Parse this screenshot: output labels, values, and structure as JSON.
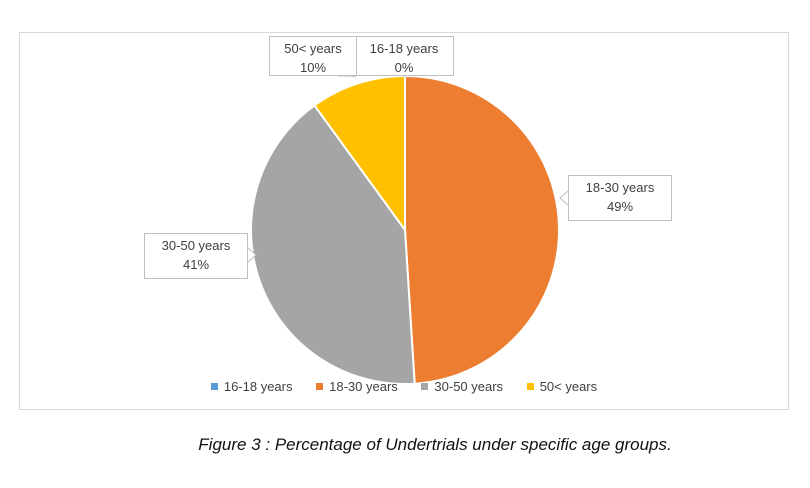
{
  "chart_data": {
    "type": "pie",
    "title": "",
    "categories": [
      "16-18 years",
      "18-30 years",
      "30-50 years",
      "50< years"
    ],
    "values": [
      0,
      49,
      41,
      10
    ],
    "value_labels": [
      "0%",
      "49%",
      "41%",
      "10%"
    ],
    "colors": [
      "#5b9bd5",
      "#ed7d31",
      "#a5a5a5",
      "#ffc000"
    ],
    "legend_position": "bottom",
    "legend": [
      "16-18 years",
      "18-30 years",
      "30-50 years",
      "50< years"
    ]
  },
  "caption": "Figure 3 : Percentage of Undertrials under specific age groups."
}
